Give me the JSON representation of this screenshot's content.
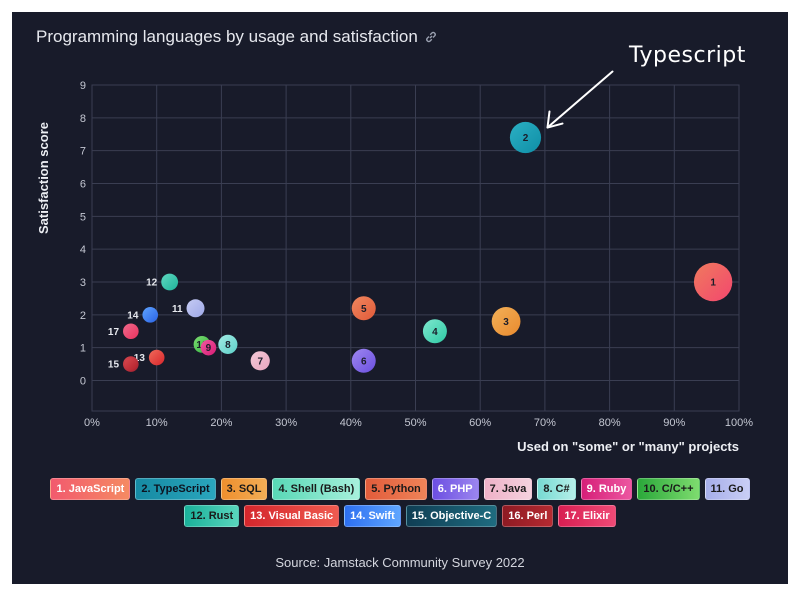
{
  "title": "Programming languages by usage and satisfaction",
  "source": "Source: Jamstack Community Survey 2022",
  "annotation": "Typescript",
  "chart_data": {
    "type": "scatter",
    "title": "Programming languages by usage and satisfaction",
    "xlabel": "Used on \"some\" or \"many\" projects",
    "ylabel": "Satisfaction score",
    "xlim": [
      0,
      100
    ],
    "ylim": [
      0,
      9
    ],
    "x_ticks": [
      "0%",
      "10%",
      "20%",
      "30%",
      "40%",
      "50%",
      "60%",
      "70%",
      "80%",
      "90%",
      "100%"
    ],
    "y_ticks": [
      "0",
      "1",
      "2",
      "3",
      "4",
      "5",
      "6",
      "7",
      "8",
      "9"
    ],
    "grid": true,
    "points": [
      {
        "id": "1",
        "name": "1. JavaScript",
        "x": 96,
        "y": 3.0,
        "size": 3.2,
        "c1": "#f2476e",
        "c2": "#f07a5e",
        "label_side": "center",
        "label_dark": true
      },
      {
        "id": "2",
        "name": "2. TypeScript",
        "x": 67,
        "y": 7.4,
        "size": 2.6,
        "c1": "#0f8ea6",
        "c2": "#2bb0c4",
        "label_side": "center",
        "label_dark": true
      },
      {
        "id": "3",
        "name": "3. SQL",
        "x": 64,
        "y": 1.8,
        "size": 2.4,
        "c1": "#e98a2e",
        "c2": "#f2b058",
        "label_side": "center",
        "label_dark": true
      },
      {
        "id": "4",
        "name": "4. Shell (Bash)",
        "x": 53,
        "y": 1.5,
        "size": 2.0,
        "c1": "#2ec9a4",
        "c2": "#7fe8cf",
        "label_side": "center",
        "label_dark": true
      },
      {
        "id": "5",
        "name": "5. Python",
        "x": 42,
        "y": 2.2,
        "size": 2.0,
        "c1": "#e05a39",
        "c2": "#f0875f",
        "label_side": "center",
        "label_dark": true
      },
      {
        "id": "6",
        "name": "6. PHP",
        "x": 42,
        "y": 0.6,
        "size": 2.0,
        "c1": "#6a4fe0",
        "c2": "#9e87f0",
        "label_side": "center",
        "label_dark": true
      },
      {
        "id": "7",
        "name": "7. Java",
        "x": 26,
        "y": 0.6,
        "size": 1.6,
        "c1": "#e9a5be",
        "c2": "#f3c9d8",
        "label_side": "center",
        "label_dark": true
      },
      {
        "id": "8",
        "name": "8. C#",
        "x": 21,
        "y": 1.1,
        "size": 1.6,
        "c1": "#5cd0c8",
        "c2": "#a4ebe5",
        "label_side": "center",
        "label_dark": true
      },
      {
        "id": "9",
        "name": "9. Ruby",
        "x": 18,
        "y": 1.0,
        "size": 1.3,
        "c1": "#d81b74",
        "c2": "#ee5aa0",
        "label_side": "center",
        "label_dark": true
      },
      {
        "id": "10",
        "name": "10. C/C++",
        "x": 17,
        "y": 1.1,
        "size": 1.4,
        "c1": "#2fb13e",
        "c2": "#7fdd72",
        "label_side": "center",
        "label_dark": true
      },
      {
        "id": "11",
        "name": "11. Go",
        "x": 16,
        "y": 2.2,
        "size": 1.5,
        "c1": "#9ea8e8",
        "c2": "#c5cbf3",
        "label_side": "left",
        "label_dark": false
      },
      {
        "id": "12",
        "name": "12. Rust",
        "x": 12,
        "y": 3.0,
        "size": 1.4,
        "c1": "#1fb39a",
        "c2": "#5fd8c0",
        "label_side": "left",
        "label_dark": false
      },
      {
        "id": "13",
        "name": "13. Visual Basic",
        "x": 10,
        "y": 0.7,
        "size": 1.3,
        "c1": "#d8262c",
        "c2": "#f06a5a",
        "label_side": "left",
        "label_dark": false
      },
      {
        "id": "14",
        "name": "14. Swift",
        "x": 9,
        "y": 2.0,
        "size": 1.3,
        "c1": "#2a63e6",
        "c2": "#5fa4ff",
        "label_side": "left",
        "label_dark": false
      },
      {
        "id": "15",
        "name": "15. Objective-C",
        "x": 6,
        "y": 0.5,
        "size": 1.3,
        "c1": "#a41e2e",
        "c2": "#d8474e",
        "label_side": "left",
        "label_dark": false
      },
      {
        "id": "16",
        "name": "16. Perl",
        "x": 6,
        "y": 0.5,
        "size": 1.0,
        "c1": "#b3222c",
        "c2": "#d8474e",
        "label_side": "none",
        "label_dark": false
      },
      {
        "id": "17",
        "name": "17. Elixir",
        "x": 6,
        "y": 1.5,
        "size": 1.3,
        "c1": "#e8325e",
        "c2": "#f06a8c",
        "label_side": "left",
        "label_dark": false
      }
    ],
    "legend": [
      {
        "label": "1. JavaScript",
        "c1": "#f25a6e",
        "c2": "#f58a62",
        "text": "#ffffff"
      },
      {
        "label": "2. TypeScript",
        "c1": "#168aa3",
        "c2": "#2aa6bd",
        "text": "#0d1320"
      },
      {
        "label": "3. SQL",
        "c1": "#ee8f2e",
        "c2": "#f2ad55",
        "text": "#1a1a1a"
      },
      {
        "label": "4. Shell (Bash)",
        "c1": "#58d8b6",
        "c2": "#a7f0dc",
        "text": "#1a1a1a"
      },
      {
        "label": "5. Python",
        "c1": "#e25c3b",
        "c2": "#ef8358",
        "text": "#1a1a1a"
      },
      {
        "label": "6. PHP",
        "c1": "#6c4fe2",
        "c2": "#9b85ef",
        "text": "#ffffff"
      },
      {
        "label": "7. Java",
        "c1": "#eeb1c7",
        "c2": "#f5d2de",
        "text": "#1a1a1a"
      },
      {
        "label": "8. C#",
        "c1": "#77dad2",
        "c2": "#b5efe9",
        "text": "#1a1a1a"
      },
      {
        "label": "9. Ruby",
        "c1": "#d61f78",
        "c2": "#ec56a0",
        "text": "#ffffff"
      },
      {
        "label": "10. C/C++",
        "c1": "#2aa83a",
        "c2": "#7edc6f",
        "text": "#1a1a1a"
      },
      {
        "label": "11. Go",
        "c1": "#a6aeea",
        "c2": "#c9cef5",
        "text": "#1a1a1a"
      },
      {
        "label": "12. Rust",
        "c1": "#1ab19a",
        "c2": "#59d5bd",
        "text": "#1a1a1a"
      },
      {
        "label": "13. Visual Basic",
        "c1": "#d4262c",
        "c2": "#ef5b50",
        "text": "#ffffff"
      },
      {
        "label": "14. Swift",
        "c1": "#2d6ff0",
        "c2": "#5fa6ff",
        "text": "#ffffff"
      },
      {
        "label": "15. Objective-C",
        "c1": "#0f3e54",
        "c2": "#1f6c80",
        "text": "#ffffff"
      },
      {
        "label": "16. Perl",
        "c1": "#8e1a23",
        "c2": "#b52a31",
        "text": "#ffffff"
      },
      {
        "label": "17. Elixir",
        "c1": "#d81e52",
        "c2": "#ef4a76",
        "text": "#ffffff"
      }
    ]
  }
}
